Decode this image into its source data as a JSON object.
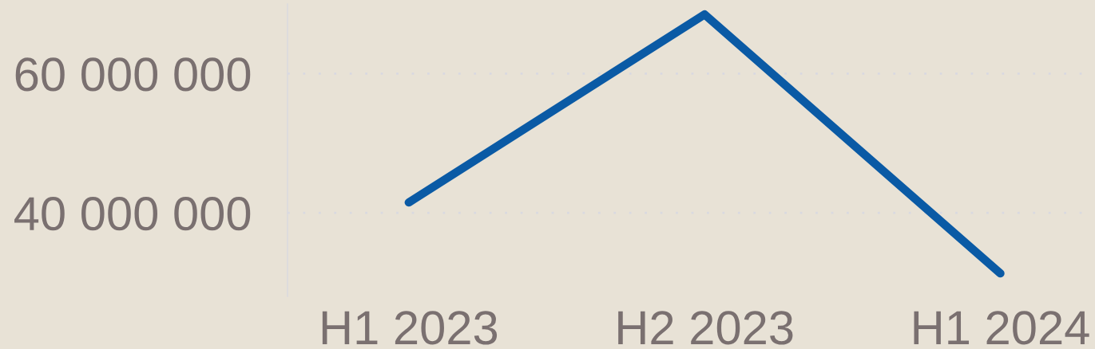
{
  "chart_data": {
    "type": "line",
    "categories": [
      "H1 2023",
      "H2 2023",
      "H1 2024"
    ],
    "series": [
      {
        "color": "#0a5aa5",
        "values": [
          41500000,
          68500000,
          31300000
        ]
      }
    ],
    "ylim": [
      28000000,
      70000000
    ],
    "yticks": [
      {
        "value": 40000000,
        "label": "40 000 000"
      },
      {
        "value": 60000000,
        "label": "60 000 000"
      }
    ],
    "grid": "y",
    "marker": "none",
    "line_style": "solid",
    "legend": false
  }
}
